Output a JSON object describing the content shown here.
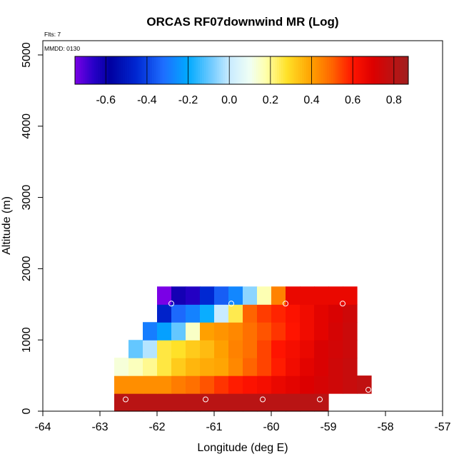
{
  "chart_data": {
    "type": "heatmap",
    "title": "ORCAS RF07downwind MR (Log)",
    "flights_label": "Flts: 7",
    "date_label": "MMDD: 0130",
    "xlabel": "Longitude (deg E)",
    "ylabel": "Altitude (m)",
    "xlim": [
      -64,
      -57
    ],
    "ylim": [
      0,
      5200
    ],
    "xticks": [
      "-64",
      "-63",
      "-62",
      "-61",
      "-60",
      "-59",
      "-58",
      "-57"
    ],
    "yticks": [
      "0",
      "1000",
      "2000",
      "3000",
      "4000",
      "5000"
    ],
    "colorbar": {
      "range": [
        -0.75,
        0.87
      ],
      "ticks": [
        "-0.6",
        "-0.4",
        "-0.2",
        "0.0",
        "0.2",
        "0.4",
        "0.6",
        "0.8"
      ]
    },
    "grid": {
      "lon_start": -62.75,
      "lon_step": 0.25,
      "alt_step": 250,
      "rows": [
        {
          "alt": 0,
          "start": 0,
          "values": [
            0.8,
            0.8,
            0.8,
            0.8,
            0.8,
            0.8,
            0.8,
            0.8,
            0.8,
            0.8,
            0.8,
            0.8,
            0.8,
            0.8,
            0.8
          ]
        },
        {
          "alt": 250,
          "start": 0,
          "values": [
            0.43,
            0.43,
            0.43,
            0.43,
            0.46,
            0.48,
            0.52,
            0.56,
            0.59,
            0.61,
            0.63,
            0.66,
            0.68,
            0.7,
            0.72,
            0.74,
            0.76,
            0.78
          ]
        },
        {
          "alt": 500,
          "start": 0,
          "values": [
            0.13,
            0.16,
            0.2,
            0.26,
            0.32,
            0.36,
            0.38,
            0.39,
            0.44,
            0.5,
            0.54,
            0.59,
            0.64,
            0.68,
            0.71,
            0.74,
            0.76
          ]
        },
        {
          "alt": 750,
          "start": 1,
          "values": [
            -0.1,
            -0.02,
            0.26,
            0.28,
            0.32,
            0.35,
            0.4,
            0.45,
            0.48,
            0.54,
            0.6,
            0.63,
            0.66,
            0.71,
            0.73,
            0.75
          ]
        },
        {
          "alt": 1000,
          "start": 2,
          "values": [
            -0.29,
            -0.22,
            -0.1,
            0.15,
            0.4,
            0.42,
            0.44,
            0.48,
            0.52,
            0.56,
            0.6,
            0.64,
            0.68,
            0.72,
            0.75
          ]
        },
        {
          "alt": 1250,
          "start": 3,
          "values": [
            -0.47,
            -0.33,
            -0.28,
            -0.19,
            0.0,
            0.25,
            0.5,
            0.55,
            0.58,
            0.61,
            0.64,
            0.68,
            0.71,
            0.74
          ]
        },
        {
          "alt": 1500,
          "start": 3,
          "values": [
            -0.75,
            -0.62,
            -0.65,
            -0.45,
            -0.35,
            -0.27,
            -0.06,
            0.17,
            0.45,
            0.66,
            0.66,
            0.66,
            0.66,
            0.66
          ]
        }
      ]
    },
    "flight_markers": [
      {
        "lon": -62.55,
        "alt": 165
      },
      {
        "lon": -61.15,
        "alt": 165
      },
      {
        "lon": -60.15,
        "alt": 165
      },
      {
        "lon": -59.15,
        "alt": 165
      },
      {
        "lon": -58.3,
        "alt": 300
      },
      {
        "lon": -61.75,
        "alt": 1510
      },
      {
        "lon": -60.7,
        "alt": 1510
      },
      {
        "lon": -59.75,
        "alt": 1510
      },
      {
        "lon": -58.75,
        "alt": 1510
      }
    ]
  }
}
